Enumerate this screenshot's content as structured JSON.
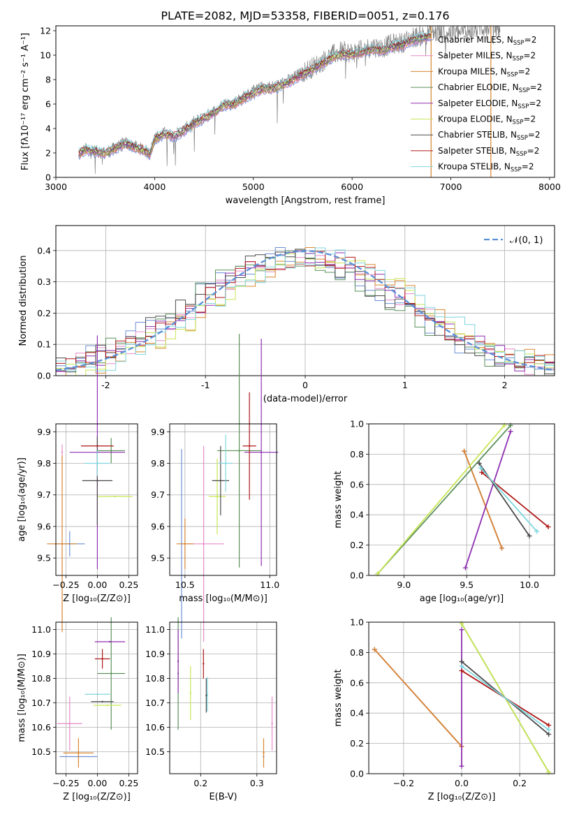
{
  "figure_title": "PLATE=2082, MJD=53358, FIBERID=0051, z=0.176",
  "colors": {
    "Chabrier MILES": "#6b8fd6",
    "Salpeter MILES": "#e58ac8",
    "Kroupa MILES": "#d8862f",
    "Chabrier ELODIE": "#5b8f5b",
    "Salpeter ELODIE": "#8f2fb0",
    "Kroupa ELODIE": "#c8e655",
    "Chabrier STELIB": "#4a4a4a",
    "Salpeter STELIB": "#b01818",
    "Kroupa STELIB": "#7fd6de",
    "data": "#808080",
    "normal": "#5b8fd6"
  },
  "chart_data": [
    {
      "id": "spectrum",
      "type": "line",
      "xlabel": "wavelength [Angstrom, rest frame]",
      "ylabel": "Flux [fλ10⁻¹⁷ erg cm⁻² s⁻¹ A⁻¹]",
      "xlim": [
        3000,
        8050
      ],
      "ylim": [
        0,
        12.4
      ],
      "xticks": [
        3000,
        4000,
        5000,
        6000,
        7000,
        8000
      ],
      "yticks": [
        0,
        2,
        4,
        6,
        8,
        10,
        12
      ],
      "grid": false,
      "legend_position": "upper right",
      "legend": [
        {
          "label": "Chabrier MILES, N",
          "sub": "SSP",
          "suffix": "=2",
          "color_key": "Chabrier MILES"
        },
        {
          "label": "Salpeter MILES, N",
          "sub": "SSP",
          "suffix": "=2",
          "color_key": "Salpeter MILES"
        },
        {
          "label": "Kroupa MILES, N",
          "sub": "SSP",
          "suffix": "=2",
          "color_key": "Kroupa MILES"
        },
        {
          "label": "Chabrier ELODIE, N",
          "sub": "SSP",
          "suffix": "=2",
          "color_key": "Chabrier ELODIE"
        },
        {
          "label": "Salpeter ELODIE, N",
          "sub": "SSP",
          "suffix": "=2",
          "color_key": "Salpeter ELODIE"
        },
        {
          "label": "Kroupa ELODIE, N",
          "sub": "SSP",
          "suffix": "=2",
          "color_key": "Kroupa ELODIE"
        },
        {
          "label": "Chabrier STELIB, N",
          "sub": "SSP",
          "suffix": "=2",
          "color_key": "Chabrier STELIB"
        },
        {
          "label": "Salpeter STELIB, N",
          "sub": "SSP",
          "suffix": "=2",
          "color_key": "Salpeter STELIB"
        },
        {
          "label": "Kroupa STELIB, N",
          "sub": "SSP",
          "suffix": "=2",
          "color_key": "Kroupa STELIB"
        }
      ],
      "data_curve": [
        [
          3230,
          1.9
        ],
        [
          3300,
          2.3
        ],
        [
          3400,
          2.1
        ],
        [
          3500,
          2.0
        ],
        [
          3600,
          2.4
        ],
        [
          3700,
          2.8
        ],
        [
          3800,
          2.5
        ],
        [
          3900,
          2.2
        ],
        [
          3950,
          1.9
        ],
        [
          4000,
          3.2
        ],
        [
          4100,
          3.6
        ],
        [
          4200,
          3.4
        ],
        [
          4300,
          3.9
        ],
        [
          4400,
          4.5
        ],
        [
          4500,
          4.9
        ],
        [
          4600,
          5.4
        ],
        [
          4700,
          6.0
        ],
        [
          4800,
          6.1
        ],
        [
          4900,
          6.6
        ],
        [
          5000,
          7.0
        ],
        [
          5100,
          7.4
        ],
        [
          5200,
          7.4
        ],
        [
          5300,
          7.7
        ],
        [
          5400,
          8.1
        ],
        [
          5500,
          8.6
        ],
        [
          5600,
          9.0
        ],
        [
          5700,
          9.5
        ],
        [
          5800,
          10.0
        ],
        [
          5900,
          10.3
        ],
        [
          6000,
          10.2
        ],
        [
          6100,
          10.4
        ],
        [
          6200,
          10.7
        ],
        [
          6300,
          10.6
        ],
        [
          6400,
          10.9
        ],
        [
          6500,
          11.0
        ],
        [
          6600,
          11.4
        ],
        [
          6700,
          11.6
        ],
        [
          6800,
          11.8
        ],
        [
          6900,
          11.8
        ],
        [
          7000,
          11.9
        ],
        [
          7100,
          11.8
        ],
        [
          7200,
          12.0
        ],
        [
          7300,
          12.3
        ],
        [
          7400,
          12.4
        ],
        [
          7500,
          12.2
        ]
      ],
      "model_range": [
        3230,
        6800
      ]
    },
    {
      "id": "residuals",
      "type": "line",
      "xlabel": "(data-model)/error",
      "ylabel": "Normed distribution",
      "xlim": [
        -2.5,
        2.5
      ],
      "ylim": [
        0,
        0.48
      ],
      "xticks": [
        -2,
        -1,
        0,
        1,
        2
      ],
      "yticks": [
        0.0,
        0.1,
        0.2,
        0.3,
        0.4
      ],
      "grid": true,
      "legend_position": "upper right",
      "legend": [
        {
          "label": "𝒩(0, 1)",
          "style": "dashed"
        }
      ],
      "normal_mu": 0,
      "normal_sigma": 1,
      "hist_bin_width": 0.1
    },
    {
      "id": "age-vs-Z",
      "type": "scatter",
      "xlabel": "Z [log₁₀(Z/Z⊙)]",
      "ylabel": "age  [log₁₀(age/yr)]",
      "xlim": [
        -0.33,
        0.32
      ],
      "ylim": [
        9.445,
        9.925
      ],
      "xticks": [
        -0.25,
        0.0,
        0.25
      ],
      "xticklabels": [
        "−0.25",
        "0.00",
        "0.25"
      ],
      "yticks": [
        9.5,
        9.6,
        9.7,
        9.8,
        9.9
      ],
      "grid": true,
      "points": [
        {
          "model": "Chabrier MILES",
          "x": -0.22,
          "y": 9.545,
          "xerr": 0.12,
          "yerr": 0.04
        },
        {
          "model": "Salpeter MILES",
          "x": -0.28,
          "y": 9.835,
          "xerr": 0.0,
          "yerr": 0.025
        },
        {
          "model": "Kroupa MILES",
          "x": -0.28,
          "y": 9.545,
          "xerr": 0.12,
          "yerr": 0.28
        },
        {
          "model": "Chabrier ELODIE",
          "x": 0.11,
          "y": 9.84,
          "xerr": 0.11,
          "yerr": 0.04
        },
        {
          "model": "Salpeter ELODIE",
          "x": 0.0,
          "y": 9.835,
          "xerr": 0.22,
          "yerr": 0.37
        },
        {
          "model": "Kroupa ELODIE",
          "x": 0.14,
          "y": 9.695,
          "xerr": 0.14,
          "yerr": 0.0
        },
        {
          "model": "Chabrier STELIB",
          "x": 0.0,
          "y": 9.745,
          "xerr": 0.12,
          "yerr": 0.14
        },
        {
          "model": "Salpeter STELIB",
          "x": 0.0,
          "y": 9.855,
          "xerr": 0.13,
          "yerr": 0.0
        },
        {
          "model": "Kroupa STELIB",
          "x": 0.0,
          "y": 9.8,
          "xerr": 0.1,
          "yerr": 0.04
        }
      ]
    },
    {
      "id": "age-vs-mass",
      "type": "scatter",
      "xlabel": "mass [log₁₀(M/M⊙)]",
      "ylabel": "",
      "xlim": [
        10.41,
        11.04
      ],
      "ylim": [
        9.445,
        9.925
      ],
      "xticks": [
        10.5,
        11.0
      ],
      "xticklabels": [
        "10.5",
        "11.0"
      ],
      "yticks": [
        9.5,
        9.6,
        9.7,
        9.8,
        9.9
      ],
      "grid": true,
      "points": [
        {
          "model": "Chabrier MILES",
          "x": 10.48,
          "y": 9.545,
          "xerr": 0.0,
          "yerr": 0.3
        },
        {
          "model": "Salpeter MILES",
          "x": 10.61,
          "y": 9.545,
          "xerr": 0.12,
          "yerr": 0.31
        },
        {
          "model": "Kroupa MILES",
          "x": 10.5,
          "y": 9.545,
          "xerr": 0.05,
          "yerr": 0.08
        },
        {
          "model": "Chabrier ELODIE",
          "x": 10.82,
          "y": 9.84,
          "xerr": 0.13,
          "yerr": 0.37
        },
        {
          "model": "Salpeter ELODIE",
          "x": 10.95,
          "y": 9.835,
          "xerr": 0.1,
          "yerr": 0.36
        },
        {
          "model": "Kroupa ELODIE",
          "x": 10.69,
          "y": 9.695,
          "xerr": 0.05,
          "yerr": 0.12
        },
        {
          "model": "Chabrier STELIB",
          "x": 10.71,
          "y": 9.745,
          "xerr": 0.05,
          "yerr": 0.11
        },
        {
          "model": "Salpeter STELIB",
          "x": 10.88,
          "y": 9.855,
          "xerr": 0.04,
          "yerr": 0.17
        },
        {
          "model": "Kroupa STELIB",
          "x": 10.74,
          "y": 9.8,
          "xerr": 0.04,
          "yerr": 0.09
        }
      ]
    },
    {
      "id": "weight-vs-age",
      "type": "line",
      "xlabel": "age  [log₁₀(age/yr)]",
      "ylabel": "mass weight",
      "xlim": [
        8.72,
        10.2
      ],
      "ylim": [
        0,
        1.0
      ],
      "xticks": [
        9.0,
        9.5,
        10.0
      ],
      "xticklabels": [
        "9.0",
        "9.5",
        "10.0"
      ],
      "yticks": [
        0.0,
        0.2,
        0.4,
        0.6,
        0.8,
        1.0
      ],
      "grid": true,
      "series": [
        {
          "model": "Chabrier MILES",
          "x": [
            9.48,
            9.78
          ],
          "y": [
            0.82,
            0.18
          ]
        },
        {
          "model": "Salpeter MILES",
          "x": [
            9.48,
            9.78
          ],
          "y": [
            0.82,
            0.18
          ]
        },
        {
          "model": "Kroupa MILES",
          "x": [
            9.48,
            9.78
          ],
          "y": [
            0.82,
            0.18
          ]
        },
        {
          "model": "Chabrier ELODIE",
          "x": [
            8.79,
            9.85
          ],
          "y": [
            0.01,
            0.99
          ]
        },
        {
          "model": "Salpeter ELODIE",
          "x": [
            9.49,
            9.85
          ],
          "y": [
            0.05,
            0.95
          ]
        },
        {
          "model": "Kroupa ELODIE",
          "x": [
            8.79,
            9.8
          ],
          "y": [
            0.01,
            0.99
          ]
        },
        {
          "model": "Chabrier STELIB",
          "x": [
            9.6,
            10.0
          ],
          "y": [
            0.74,
            0.26
          ]
        },
        {
          "model": "Salpeter STELIB",
          "x": [
            9.62,
            10.15
          ],
          "y": [
            0.68,
            0.32
          ]
        },
        {
          "model": "Kroupa STELIB",
          "x": [
            9.61,
            10.06
          ],
          "y": [
            0.71,
            0.29
          ]
        }
      ]
    },
    {
      "id": "mass-vs-Z",
      "type": "scatter",
      "xlabel": "Z [log₁₀(Z/Z⊙)]",
      "ylabel": "mass [log₁₀(M/M⊙)]",
      "xlim": [
        -0.33,
        0.32
      ],
      "ylim": [
        10.41,
        11.03
      ],
      "xticks": [
        -0.25,
        0.0,
        0.25
      ],
      "xticklabels": [
        "−0.25",
        "0.00",
        "0.25"
      ],
      "yticks": [
        10.5,
        10.6,
        10.7,
        10.8,
        10.9,
        11.0
      ],
      "grid": true,
      "points": [
        {
          "model": "Chabrier MILES",
          "x": -0.15,
          "y": 10.48,
          "xerr": 0.15,
          "yerr": 0.0
        },
        {
          "model": "Salpeter MILES",
          "x": -0.22,
          "y": 10.615,
          "xerr": 0.1,
          "yerr": 0.11
        },
        {
          "model": "Kroupa MILES",
          "x": -0.15,
          "y": 10.495,
          "xerr": 0.12,
          "yerr": 0.06
        },
        {
          "model": "Chabrier ELODIE",
          "x": 0.11,
          "y": 10.82,
          "xerr": 0.11,
          "yerr": 0.23
        },
        {
          "model": "Salpeter ELODIE",
          "x": 0.1,
          "y": 10.95,
          "xerr": 0.12,
          "yerr": 0.0
        },
        {
          "model": "Kroupa ELODIE",
          "x": 0.08,
          "y": 10.69,
          "xerr": 0.11,
          "yerr": 0.0
        },
        {
          "model": "Chabrier STELIB",
          "x": 0.04,
          "y": 10.705,
          "xerr": 0.09,
          "yerr": 0.0
        },
        {
          "model": "Salpeter STELIB",
          "x": 0.04,
          "y": 10.88,
          "xerr": 0.06,
          "yerr": 0.04
        },
        {
          "model": "Kroupa STELIB",
          "x": 0.0,
          "y": 10.735,
          "xerr": 0.1,
          "yerr": 0.0
        }
      ]
    },
    {
      "id": "mass-vs-EBV",
      "type": "scatter",
      "xlabel": "E(B-V)",
      "ylabel": "",
      "xlim": [
        0.145,
        0.335
      ],
      "ylim": [
        10.41,
        11.03
      ],
      "xticks": [
        0.2,
        0.3
      ],
      "xticklabels": [
        "0.2",
        "0.3"
      ],
      "yticks": [
        10.5,
        10.6,
        10.7,
        10.8,
        10.9,
        11.0
      ],
      "grid": true,
      "points": [
        {
          "model": "Chabrier MILES",
          "x": 0.312,
          "y": 10.48,
          "xerr": 0.0,
          "yerr": 0.0
        },
        {
          "model": "Salpeter MILES",
          "x": 0.327,
          "y": 10.615,
          "xerr": 0.0,
          "yerr": 0.11
        },
        {
          "model": "Kroupa MILES",
          "x": 0.312,
          "y": 10.495,
          "xerr": 0.0,
          "yerr": 0.06
        },
        {
          "model": "Chabrier ELODIE",
          "x": 0.16,
          "y": 10.82,
          "xerr": 0.0,
          "yerr": 0.23
        },
        {
          "model": "Salpeter ELODIE",
          "x": 0.16,
          "y": 10.87,
          "xerr": 0.0,
          "yerr": 0.13
        },
        {
          "model": "Kroupa ELODIE",
          "x": 0.182,
          "y": 10.74,
          "xerr": 0.0,
          "yerr": 0.11
        },
        {
          "model": "Chabrier STELIB",
          "x": 0.21,
          "y": 10.73,
          "xerr": 0.0,
          "yerr": 0.07
        },
        {
          "model": "Salpeter STELIB",
          "x": 0.205,
          "y": 10.86,
          "xerr": 0.0,
          "yerr": 0.06
        },
        {
          "model": "Kroupa STELIB",
          "x": 0.212,
          "y": 10.735,
          "xerr": 0.0,
          "yerr": 0.07
        }
      ]
    },
    {
      "id": "weight-vs-Z",
      "type": "line",
      "xlabel": "Z [log₁₀(Z/Z⊙)]",
      "ylabel": "mass weight",
      "xlim": [
        -0.32,
        0.32
      ],
      "ylim": [
        0,
        1.0
      ],
      "xticks": [
        -0.2,
        0.0,
        0.2
      ],
      "xticklabels": [
        "−0.2",
        "0.0",
        "0.2"
      ],
      "yticks": [
        0.0,
        0.2,
        0.4,
        0.6,
        0.8,
        1.0
      ],
      "grid": true,
      "series": [
        {
          "model": "Chabrier MILES",
          "x": [
            -0.3,
            0.0
          ],
          "y": [
            0.82,
            0.18
          ]
        },
        {
          "model": "Salpeter MILES",
          "x": [
            -0.3,
            0.0
          ],
          "y": [
            0.82,
            0.18
          ]
        },
        {
          "model": "Kroupa MILES",
          "x": [
            -0.3,
            0.0
          ],
          "y": [
            0.82,
            0.18
          ]
        },
        {
          "model": "Chabrier ELODIE",
          "x": [
            0.0,
            0.3
          ],
          "y": [
            0.99,
            0.01
          ]
        },
        {
          "model": "Salpeter ELODIE",
          "x": [
            0.0,
            0.0
          ],
          "y": [
            0.05,
            0.95
          ]
        },
        {
          "model": "Kroupa ELODIE",
          "x": [
            0.0,
            0.3
          ],
          "y": [
            0.99,
            0.01
          ]
        },
        {
          "model": "Chabrier STELIB",
          "x": [
            0.0,
            0.3
          ],
          "y": [
            0.74,
            0.26
          ]
        },
        {
          "model": "Salpeter STELIB",
          "x": [
            0.0,
            0.3
          ],
          "y": [
            0.68,
            0.32
          ]
        },
        {
          "model": "Kroupa STELIB",
          "x": [
            0.0,
            0.3
          ],
          "y": [
            0.71,
            0.29
          ]
        }
      ]
    }
  ]
}
